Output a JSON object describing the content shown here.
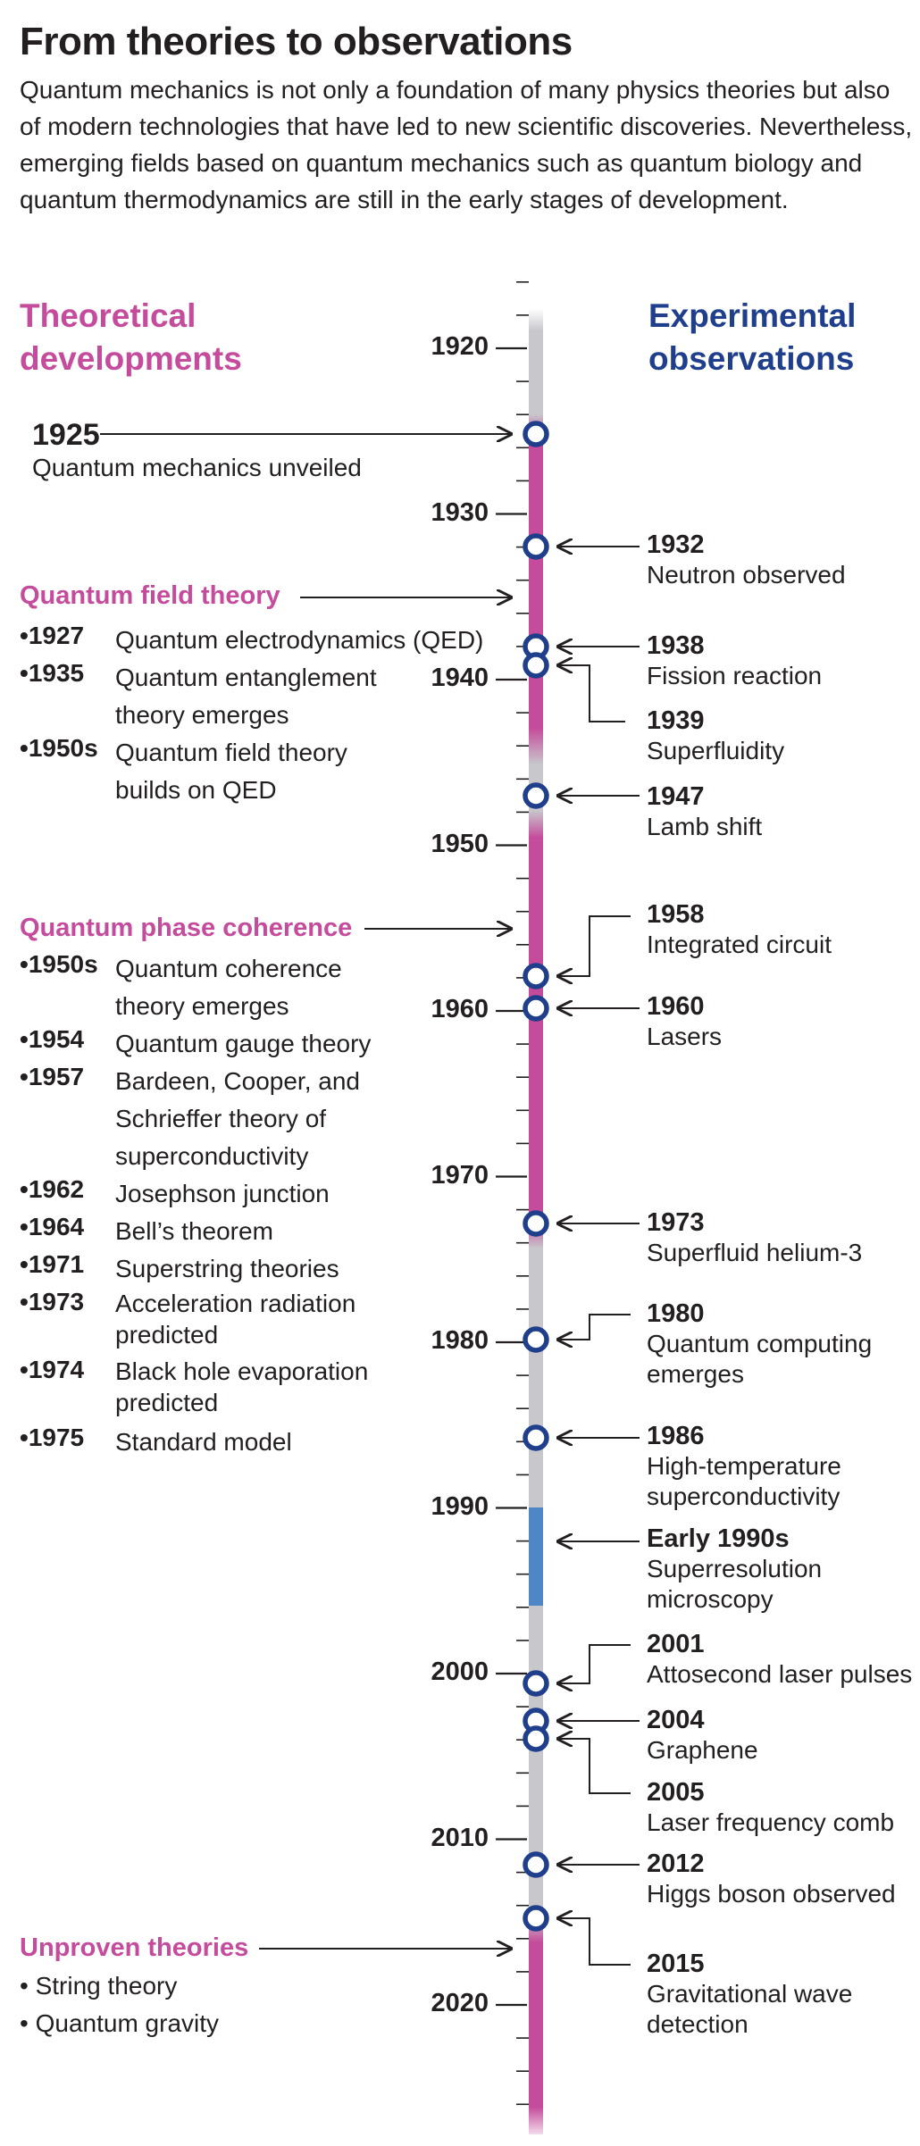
{
  "title": "From theories to observations",
  "intro": "Quantum mechanics is not only a foundation of many physics theories but also of modern technologies that have led to new scientific discoveries. Nevertheless, emerging fields based on quantum mechanics such as quantum biology and quantum thermodynamics are still in the early stages of development.",
  "left_header": "Theoretical developments",
  "right_header": "Experimental observations",
  "axis_years": [
    "1920",
    "1930",
    "1940",
    "1950",
    "1960",
    "1970",
    "1980",
    "1990",
    "2000",
    "2010",
    "2020"
  ],
  "theory_1925": {
    "year": "1925",
    "text": "Quantum mechanics unveiled"
  },
  "qft": {
    "title": "Quantum field theory",
    "items": [
      {
        "year": "1927",
        "text": "Quantum electrodynamics (QED)"
      },
      {
        "year": "1935",
        "text": "Quantum entanglement theory emerges"
      },
      {
        "year": "1950s",
        "text": "Quantum field theory builds on QED"
      }
    ]
  },
  "qpc": {
    "title": "Quantum phase coherence",
    "items": [
      {
        "year": "1950s",
        "text": "Quantum coherence theory emerges"
      },
      {
        "year": "1954",
        "text": "Quantum gauge theory"
      },
      {
        "year": "1957",
        "text": "Bardeen, Cooper, and Schrieffer theory of superconductivity"
      },
      {
        "year": "1962",
        "text": "Josephson junction"
      },
      {
        "year": "1964",
        "text": "Bell’s theorem"
      },
      {
        "year": "1971",
        "text": "Superstring theories"
      },
      {
        "year": "1973",
        "text": "Acceleration radiation predicted"
      },
      {
        "year": "1974",
        "text": "Black hole evaporation predicted"
      },
      {
        "year": "1975",
        "text": "Standard model"
      }
    ]
  },
  "unproven": {
    "title": "Unproven theories",
    "items": [
      "String theory",
      "Quantum gravity"
    ]
  },
  "observations": [
    {
      "year": "1932",
      "text": "Neutron observed"
    },
    {
      "year": "1938",
      "text": "Fission reaction"
    },
    {
      "year": "1939",
      "text": "Superfluidity"
    },
    {
      "year": "1947",
      "text": "Lamb shift"
    },
    {
      "year": "1958",
      "text": "Integrated circuit"
    },
    {
      "year": "1960",
      "text": "Lasers"
    },
    {
      "year": "1973",
      "text": "Superfluid helium-3"
    },
    {
      "year": "1980",
      "text": "Quantum computing emerges"
    },
    {
      "year": "1986",
      "text": "High-temperature superconductivity"
    },
    {
      "year": "Early 1990s",
      "text": "Superresolution microscopy"
    },
    {
      "year": "2001",
      "text": "Attosecond laser pulses"
    },
    {
      "year": "2004",
      "text": "Graphene"
    },
    {
      "year": "2005",
      "text": "Laser frequency comb"
    },
    {
      "year": "2012",
      "text": "Higgs boson observed"
    },
    {
      "year": "2015",
      "text": "Gravitational wave detection"
    }
  ],
  "colors": {
    "theory": "#c54b9c",
    "observation": "#1f3f8c",
    "bar_gray": "#c8c8cc",
    "bar_magenta": "#c54b9c",
    "bar_blue": "#4f86c6"
  }
}
